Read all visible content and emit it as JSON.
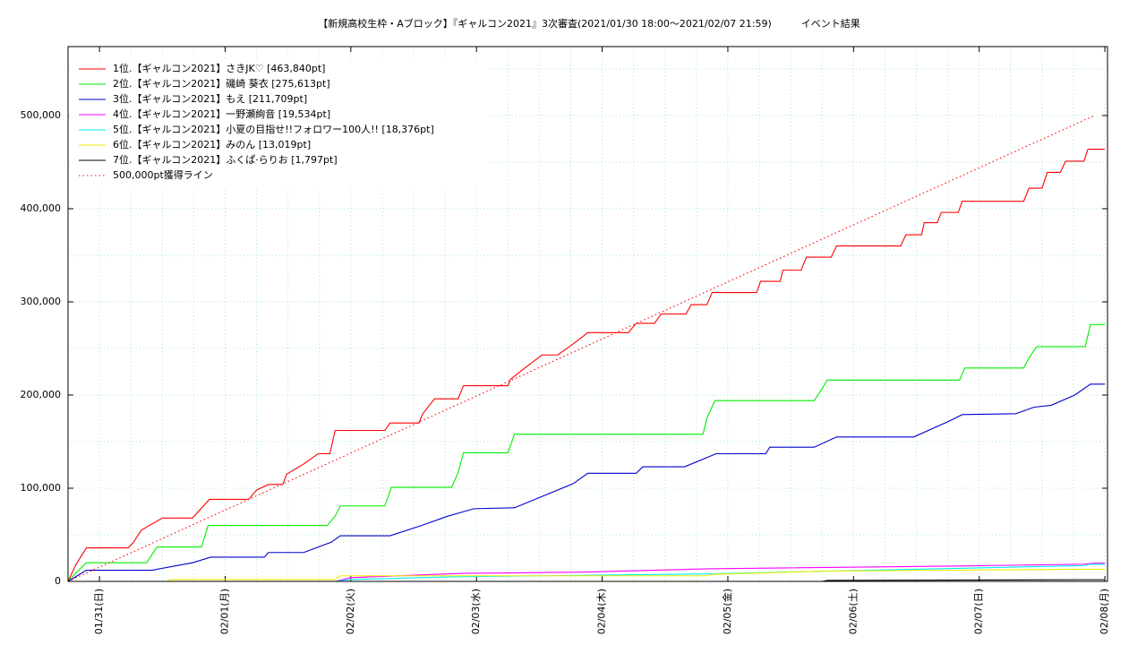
{
  "chart_data": {
    "type": "line",
    "title": "【新規高校生枠・Aブロック】『ギャルコン2021』3次審査(2021/01/30 18:00〜2021/02/07 21:59)　　　イベント結果",
    "xlim": [
      "2021-01-30 18:00",
      "2021-02-08 00:30"
    ],
    "xticks": [
      {
        "value": "2021-01-31 00:00",
        "label": "01/31(日)"
      },
      {
        "value": "2021-02-01 00:00",
        "label": "02/01(月)"
      },
      {
        "value": "2021-02-02 00:00",
        "label": "02/02(火)"
      },
      {
        "value": "2021-02-03 00:00",
        "label": "02/03(水)"
      },
      {
        "value": "2021-02-04 00:00",
        "label": "02/04(木)"
      },
      {
        "value": "2021-02-05 00:00",
        "label": "02/05(金)"
      },
      {
        "value": "2021-02-06 00:00",
        "label": "02/06(土)"
      },
      {
        "value": "2021-02-07 00:00",
        "label": "02/07(日)"
      },
      {
        "value": "2021-02-08 00:00",
        "label": "02/08(月)"
      }
    ],
    "xminor": 4,
    "ylim": [
      0,
      574000
    ],
    "yticks": [
      0,
      {
        "value": 100000,
        "label": "100,000"
      },
      {
        "value": 200000,
        "label": "200,000"
      },
      {
        "value": 300000,
        "label": "300,000"
      },
      {
        "value": 400000,
        "label": "400,000"
      },
      {
        "value": 500000,
        "label": "500,000"
      }
    ],
    "yminor": 2,
    "grid": true,
    "legend": "upper left",
    "series": [
      {
        "name": "1位.【ギャルコン2021】さきJK♡ [463,840pt]",
        "color": "#ff0000",
        "x": [
          "2021-01-30 18:00",
          "2021-01-30 19:30",
          "2021-01-30 21:30",
          "2021-01-31 05:30",
          "2021-01-31 06:30",
          "2021-01-31 08:00",
          "2021-01-31 12:00",
          "2021-01-31 17:45",
          "2021-01-31 21:00",
          "2021-02-01 04:30",
          "2021-02-01 06:00",
          "2021-02-01 08:15",
          "2021-02-01 11:00",
          "2021-02-01 11:45",
          "2021-02-01 15:00",
          "2021-02-01 17:45",
          "2021-02-01 20:00",
          "2021-02-01 21:00",
          "2021-02-02 06:30",
          "2021-02-02 07:30",
          "2021-02-02 13:00",
          "2021-02-02 13:45",
          "2021-02-02 16:00",
          "2021-02-02 20:30",
          "2021-02-02 21:30",
          "2021-02-03 06:00",
          "2021-02-03 06:30",
          "2021-02-03 09:00",
          "2021-02-03 12:30",
          "2021-02-03 15:30",
          "2021-02-03 18:30",
          "2021-02-03 21:15",
          "2021-02-04 05:00",
          "2021-02-04 06:30",
          "2021-02-04 10:00",
          "2021-02-04 11:15",
          "2021-02-04 16:00",
          "2021-02-04 17:00",
          "2021-02-04 20:00",
          "2021-02-04 21:00",
          "2021-02-05 05:30",
          "2021-02-05 06:15",
          "2021-02-05 10:00",
          "2021-02-05 10:30",
          "2021-02-05 14:00",
          "2021-02-05 15:00",
          "2021-02-05 19:45",
          "2021-02-05 20:45",
          "2021-02-06 09:00",
          "2021-02-06 10:00",
          "2021-02-06 13:00",
          "2021-02-06 13:30",
          "2021-02-06 16:00",
          "2021-02-06 16:45",
          "2021-02-06 20:00",
          "2021-02-06 20:45",
          "2021-02-07 08:30",
          "2021-02-07 09:30",
          "2021-02-07 12:00",
          "2021-02-07 13:00",
          "2021-02-07 15:30",
          "2021-02-07 16:30",
          "2021-02-07 20:00",
          "2021-02-07 20:45",
          "2021-02-08 00:00"
        ],
        "values": [
          0,
          18000,
          36000,
          36000,
          42000,
          55000,
          68000,
          68000,
          88000,
          88000,
          98000,
          104000,
          104000,
          115000,
          126000,
          137000,
          137000,
          162000,
          162000,
          170000,
          170000,
          180000,
          196000,
          196000,
          210000,
          210000,
          217000,
          228000,
          243000,
          243000,
          255000,
          267000,
          267000,
          277000,
          277000,
          287000,
          287000,
          297000,
          297000,
          310000,
          310000,
          322000,
          322000,
          334000,
          334000,
          348000,
          348000,
          360000,
          360000,
          372000,
          372000,
          385000,
          385000,
          396000,
          396000,
          408000,
          408000,
          422000,
          422000,
          439000,
          439000,
          451000,
          451000,
          463840,
          463840
        ]
      },
      {
        "name": "2位.【ギャルコン2021】磯崎 葵衣 [275,613pt]",
        "color": "#00ee00",
        "x": [
          "2021-01-30 18:00",
          "2021-01-30 19:30",
          "2021-01-30 21:30",
          "2021-01-31 09:00",
          "2021-01-31 11:00",
          "2021-01-31 19:30",
          "2021-01-31 20:45",
          "2021-02-01 19:30",
          "2021-02-01 21:00",
          "2021-02-01 22:00",
          "2021-02-02 06:30",
          "2021-02-02 07:45",
          "2021-02-02 19:15",
          "2021-02-02 20:30",
          "2021-02-02 21:30",
          "2021-02-03 06:00",
          "2021-02-03 07:15",
          "2021-02-04 19:15",
          "2021-02-04 20:00",
          "2021-02-04 21:30",
          "2021-02-05 16:30",
          "2021-02-05 18:00",
          "2021-02-05 19:00",
          "2021-02-06 20:15",
          "2021-02-06 21:15",
          "2021-02-07 08:30",
          "2021-02-07 09:30",
          "2021-02-07 11:00",
          "2021-02-07 20:15",
          "2021-02-07 21:15",
          "2021-02-08 00:00"
        ],
        "values": [
          0,
          9000,
          20000,
          20000,
          37000,
          37000,
          60000,
          60000,
          70000,
          81000,
          81000,
          101000,
          101000,
          117000,
          138000,
          138000,
          158000,
          158000,
          175000,
          194000,
          194000,
          207000,
          216000,
          216000,
          229000,
          229000,
          240000,
          252000,
          252000,
          275613,
          275613
        ]
      },
      {
        "name": "3位.【ギャルコン2021】もえ [211,709pt]",
        "color": "#0000cc",
        "x": [
          "2021-01-30 18:00",
          "2021-01-30 21:30",
          "2021-01-31 10:00",
          "2021-01-31 17:45",
          "2021-01-31 21:15",
          "2021-02-01 07:30",
          "2021-02-01 08:15",
          "2021-02-01 15:00",
          "2021-02-01 20:15",
          "2021-02-01 22:00",
          "2021-02-02 07:30",
          "2021-02-02 13:30",
          "2021-02-02 18:30",
          "2021-02-02 23:30",
          "2021-02-03 07:15",
          "2021-02-03 18:30",
          "2021-02-03 21:15",
          "2021-02-04 06:30",
          "2021-02-04 07:45",
          "2021-02-04 15:45",
          "2021-02-04 21:45",
          "2021-02-05 07:15",
          "2021-02-05 08:00",
          "2021-02-05 16:30",
          "2021-02-05 20:45",
          "2021-02-06 11:30",
          "2021-02-06 18:15",
          "2021-02-06 20:45",
          "2021-02-07 07:00",
          "2021-02-07 10:30",
          "2021-02-07 13:45",
          "2021-02-07 18:15",
          "2021-02-07 21:15",
          "2021-02-08 00:00"
        ],
        "values": [
          0,
          12000,
          12000,
          20000,
          26000,
          26000,
          31000,
          31000,
          42000,
          49000,
          49000,
          60000,
          70000,
          78000,
          79000,
          105000,
          116000,
          116000,
          123000,
          123000,
          137000,
          137000,
          144000,
          144000,
          155000,
          155000,
          172000,
          179000,
          180000,
          187000,
          189000,
          200000,
          211709,
          211709
        ]
      },
      {
        "name": "4位.【ギャルコン2021】一野瀬絢音 [19,534pt]",
        "color": "#ff00ff",
        "x": [
          "2021-01-30 18:00",
          "2021-02-01 21:00",
          "2021-02-02 00:00",
          "2021-02-02 21:00",
          "2021-02-03 21:00",
          "2021-02-04 20:00",
          "2021-02-06 20:00",
          "2021-02-07 20:00",
          "2021-02-07 22:00",
          "2021-02-08 00:00"
        ],
        "values": [
          0,
          0,
          4000,
          8600,
          10000,
          13500,
          16500,
          18500,
          19534,
          19534
        ]
      },
      {
        "name": "5位.【ギャルコン2021】小夏の目指せ!!フォロワー100人!! [18,376pt]",
        "color": "#00eeee",
        "x": [
          "2021-01-30 18:00",
          "2021-02-01 21:00",
          "2021-02-02 00:00",
          "2021-02-02 20:00",
          "2021-02-04 20:00",
          "2021-02-05 19:00",
          "2021-02-06 20:00",
          "2021-02-07 20:00",
          "2021-02-07 21:00",
          "2021-02-08 00:00"
        ],
        "values": [
          0,
          0,
          2000,
          5000,
          8000,
          11000,
          14000,
          17000,
          18376,
          18376
        ]
      },
      {
        "name": "6位.【ギャルコン2021】みのん [13,019pt]",
        "color": "#eeee00",
        "x": [
          "2021-01-30 18:00",
          "2021-01-31 13:00",
          "2021-01-31 13:30",
          "2021-02-01 21:00",
          "2021-02-01 22:00",
          "2021-02-04 20:00",
          "2021-02-04 21:00",
          "2021-02-05 18:00",
          "2021-02-06 19:00",
          "2021-02-07 18:00",
          "2021-02-08 00:00"
        ],
        "values": [
          0,
          0,
          2000,
          2000,
          6000,
          6000,
          7500,
          11000,
          12000,
          13019,
          13019
        ]
      },
      {
        "name": "7位.【ギャルコン2021】ふくぱ·らりお [1,797pt]",
        "color": "#000000",
        "x": [
          "2021-01-30 18:00",
          "2021-02-05 18:00",
          "2021-02-05 19:00",
          "2021-02-07 19:00",
          "2021-02-08 00:00"
        ],
        "values": [
          0,
          0,
          1000,
          1797,
          1797
        ]
      },
      {
        "name": "500,000pt獲得ライン",
        "color": "#ff0000",
        "dash": "dotted",
        "x": [
          "2021-01-30 18:00",
          "2021-02-07 21:59"
        ],
        "values": [
          0,
          500000
        ]
      }
    ]
  }
}
